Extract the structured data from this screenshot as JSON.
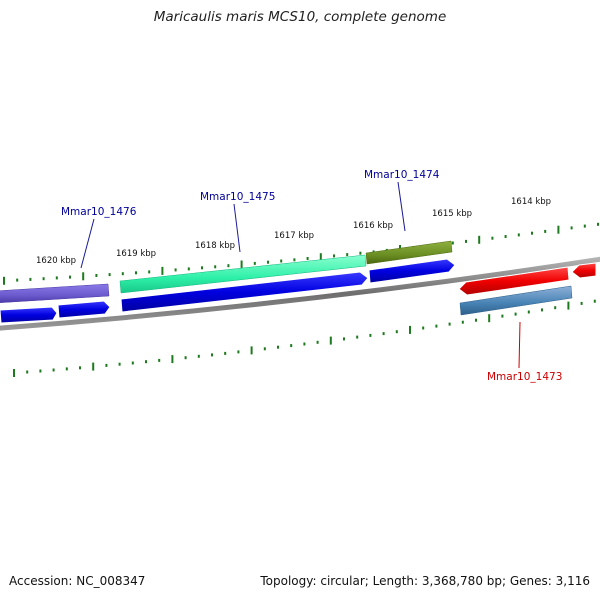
{
  "title": "Maricaulis maris MCS10, complete genome",
  "accession": "Accession: NC_008347",
  "summary": "Topology: circular; Length: 3,368,780 bp; Genes: 3,116",
  "colors": {
    "tick": "#1e7a1e",
    "backbone": "#8a8a8a",
    "cds": "#0000dd",
    "label_blue": "#000099",
    "label_red": "#cc0000"
  },
  "scale_labels": [
    "1620 kbp",
    "1619 kbp",
    "1618 kbp",
    "1617 kbp",
    "1616 kbp",
    "1615 kbp",
    "1614 kbp"
  ],
  "genes": [
    {
      "name": "Mmar10_1476",
      "color": "#6a5acd"
    },
    {
      "name": "Mmar10_1475",
      "color": "#2ef0a8"
    },
    {
      "name": "Mmar10_1474",
      "color": "#6b8e23"
    },
    {
      "name": "Mmar10_1473",
      "color": "#4682b4"
    }
  ]
}
